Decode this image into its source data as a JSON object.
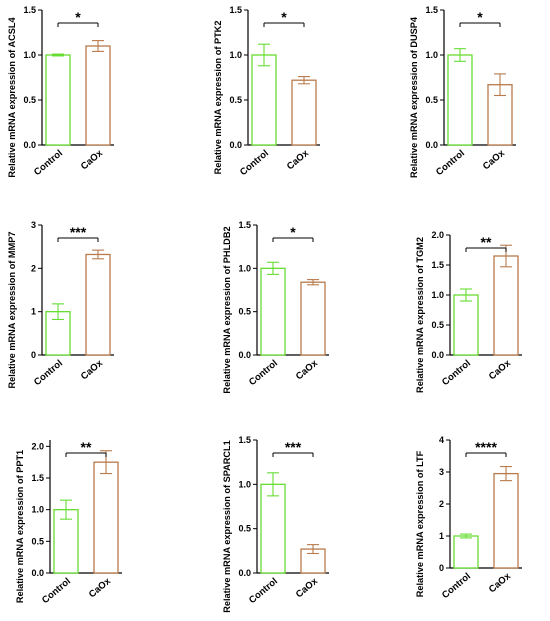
{
  "chart_data": [
    {
      "type": "bar",
      "ylabel": "Relative mRNA expression of ACSL4",
      "categories": [
        "Control",
        "CaOx"
      ],
      "values": [
        1.0,
        1.1
      ],
      "errors": [
        0.01,
        0.06
      ],
      "ylim": [
        0,
        1.5
      ],
      "yticks": [
        "0.0",
        "0.5",
        "1.0",
        "1.5"
      ],
      "significance": "*",
      "colors": [
        "#66dd33",
        "#b87a4b"
      ]
    },
    {
      "type": "bar",
      "ylabel": "Relative mRNA expression of PTK2",
      "categories": [
        "Control",
        "CaOx"
      ],
      "values": [
        1.0,
        0.72
      ],
      "errors": [
        0.12,
        0.04
      ],
      "ylim": [
        0,
        1.5
      ],
      "yticks": [
        "0.0",
        "0.5",
        "1.0",
        "1.5"
      ],
      "significance": "*",
      "colors": [
        "#66dd33",
        "#b87a4b"
      ]
    },
    {
      "type": "bar",
      "ylabel": "Relative mRNA expression of DUSP4",
      "categories": [
        "Control",
        "CaOx"
      ],
      "values": [
        1.0,
        0.67
      ],
      "errors": [
        0.07,
        0.12
      ],
      "ylim": [
        0,
        1.5
      ],
      "yticks": [
        "0.0",
        "0.5",
        "1.0",
        "1.5"
      ],
      "significance": "*",
      "colors": [
        "#66dd33",
        "#b87a4b"
      ]
    },
    {
      "type": "bar",
      "ylabel": "Relative mRNA expression of MMP7",
      "categories": [
        "Control",
        "CaOx"
      ],
      "values": [
        1.0,
        2.32
      ],
      "errors": [
        0.18,
        0.1
      ],
      "ylim": [
        0,
        3
      ],
      "yticks": [
        "0",
        "1",
        "2",
        "3"
      ],
      "significance": "***",
      "colors": [
        "#66dd33",
        "#b87a4b"
      ]
    },
    {
      "type": "bar",
      "ylabel": "Relative mRNA expression of PHLDB2",
      "categories": [
        "Control",
        "CaOx"
      ],
      "values": [
        1.0,
        0.84
      ],
      "errors": [
        0.07,
        0.03
      ],
      "ylim": [
        0,
        1.5
      ],
      "yticks": [
        "0.0",
        "0.5",
        "1.0",
        "1.5"
      ],
      "significance": "*",
      "colors": [
        "#66dd33",
        "#b87a4b"
      ]
    },
    {
      "type": "bar",
      "ylabel": "Relative mRNA expression of TGM2",
      "categories": [
        "Control",
        "CaOx"
      ],
      "values": [
        1.0,
        1.65
      ],
      "errors": [
        0.1,
        0.18
      ],
      "ylim": [
        0,
        2.0
      ],
      "yticks": [
        "0.0",
        "0.5",
        "1.0",
        "1.5",
        "2.0"
      ],
      "significance": "**",
      "colors": [
        "#66dd33",
        "#b87a4b"
      ]
    },
    {
      "type": "bar",
      "ylabel": "Relative mRNA expression of PPT1",
      "categories": [
        "Control",
        "CaOx"
      ],
      "values": [
        1.0,
        1.75
      ],
      "errors": [
        0.15,
        0.18
      ],
      "ylim": [
        0,
        2.1
      ],
      "yticks": [
        "0.0",
        "0.5",
        "1.0",
        "1.5",
        "2.0"
      ],
      "significance": "**",
      "colors": [
        "#66dd33",
        "#b87a4b"
      ]
    },
    {
      "type": "bar",
      "ylabel": "Relative mRNA expression of SPARCL1",
      "categories": [
        "Control",
        "CaOx"
      ],
      "values": [
        1.0,
        0.27
      ],
      "errors": [
        0.13,
        0.05
      ],
      "ylim": [
        0,
        1.5
      ],
      "yticks": [
        "0.0",
        "0.5",
        "1.0",
        "1.5"
      ],
      "significance": "***",
      "colors": [
        "#66dd33",
        "#b87a4b"
      ]
    },
    {
      "type": "bar",
      "ylabel": "Relative mRNA expression of LTF",
      "categories": [
        "Control",
        "CaOx"
      ],
      "values": [
        1.0,
        2.95
      ],
      "errors": [
        0.06,
        0.22
      ],
      "ylim": [
        0,
        4
      ],
      "yticks": [
        "0",
        "1",
        "2",
        "3",
        "4"
      ],
      "significance": "****",
      "colors": [
        "#66dd33",
        "#b87a4b"
      ]
    }
  ]
}
